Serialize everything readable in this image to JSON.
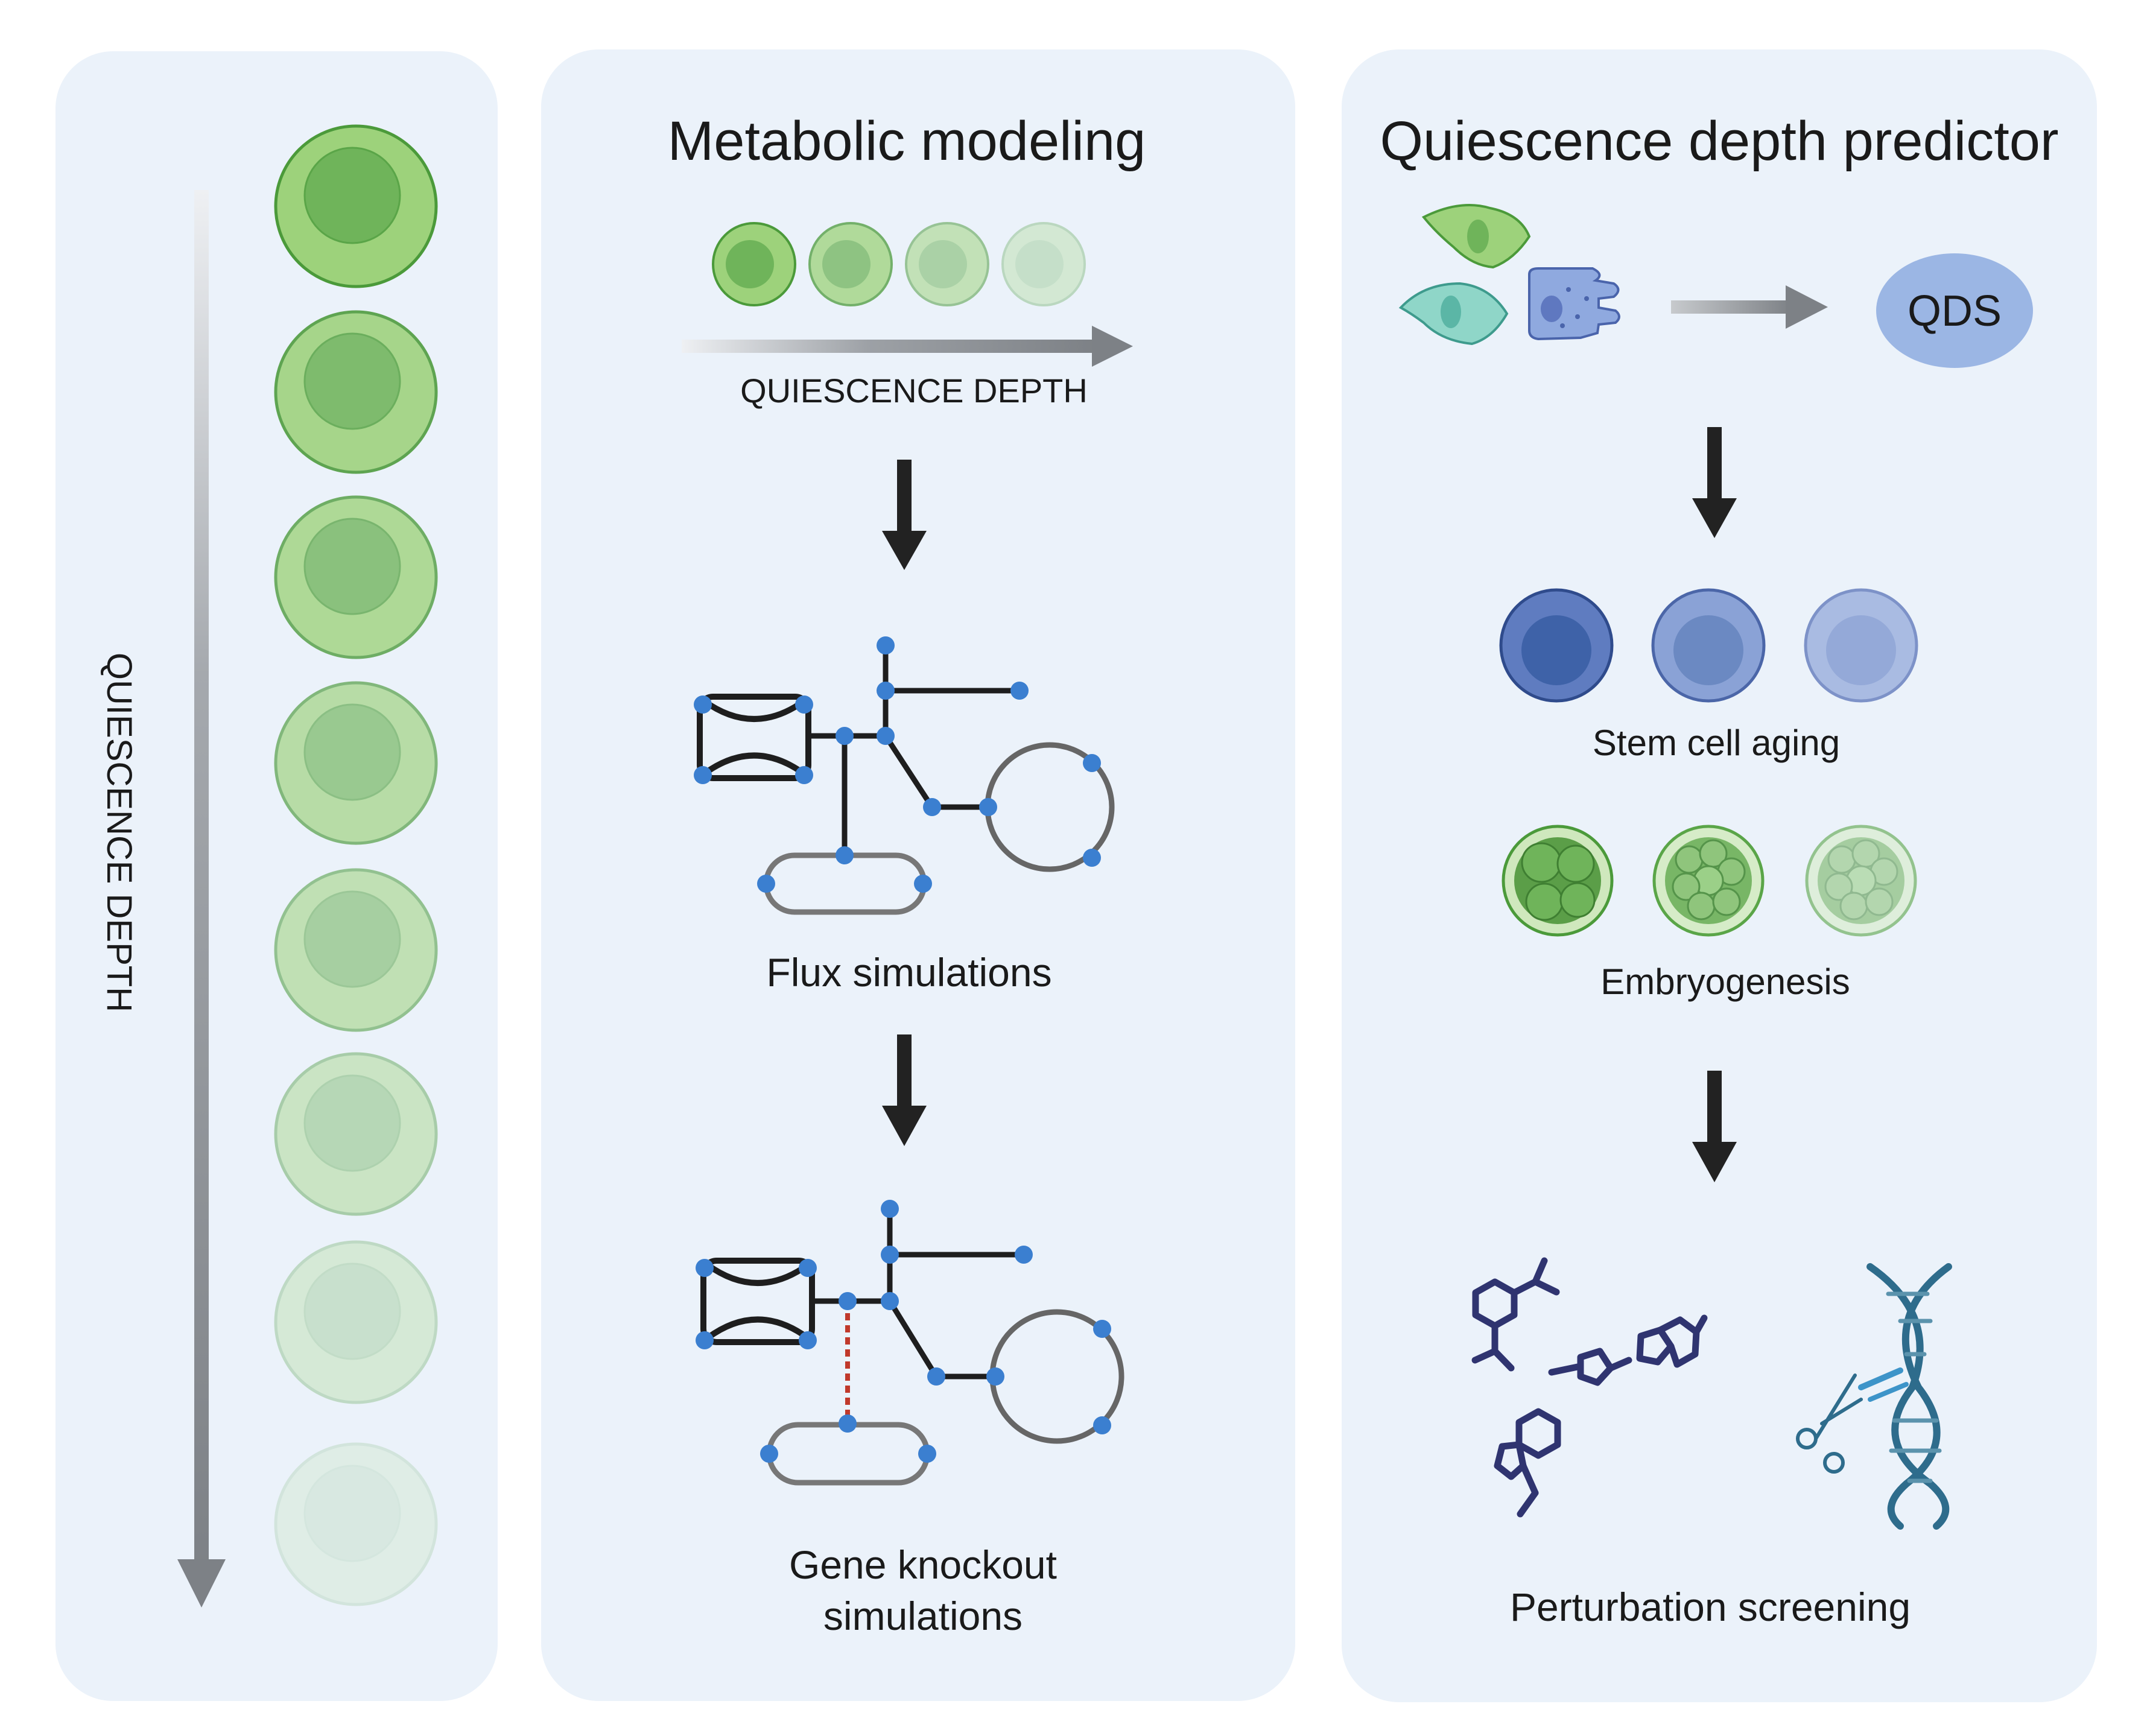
{
  "left_panel": {
    "axis_label": "QUIESCENCE DEPTH"
  },
  "metabolic_panel": {
    "title": "Metabolic modeling",
    "depth_label": "QUIESCENCE DEPTH",
    "flux_label": "Flux simulations",
    "knockout_label_line1": "Gene knockout",
    "knockout_label_line2": "simulations"
  },
  "predictor_panel": {
    "title": "Quiescence depth predictor",
    "score_label": "QDS",
    "stem_label": "Stem cell aging",
    "embryo_label": "Embryogenesis",
    "perturbation_label": "Perturbation screening"
  },
  "colors": {
    "panel_bg": "#ebf2fa",
    "cell_green": "#7cc35e",
    "network_node": "#3b7fd0",
    "arrow_dark": "#222222",
    "qds_fill": "#9bb6e4",
    "dna": "#2e6c8c",
    "molecule": "#2f3470",
    "knockout_line": "#c0392b"
  }
}
